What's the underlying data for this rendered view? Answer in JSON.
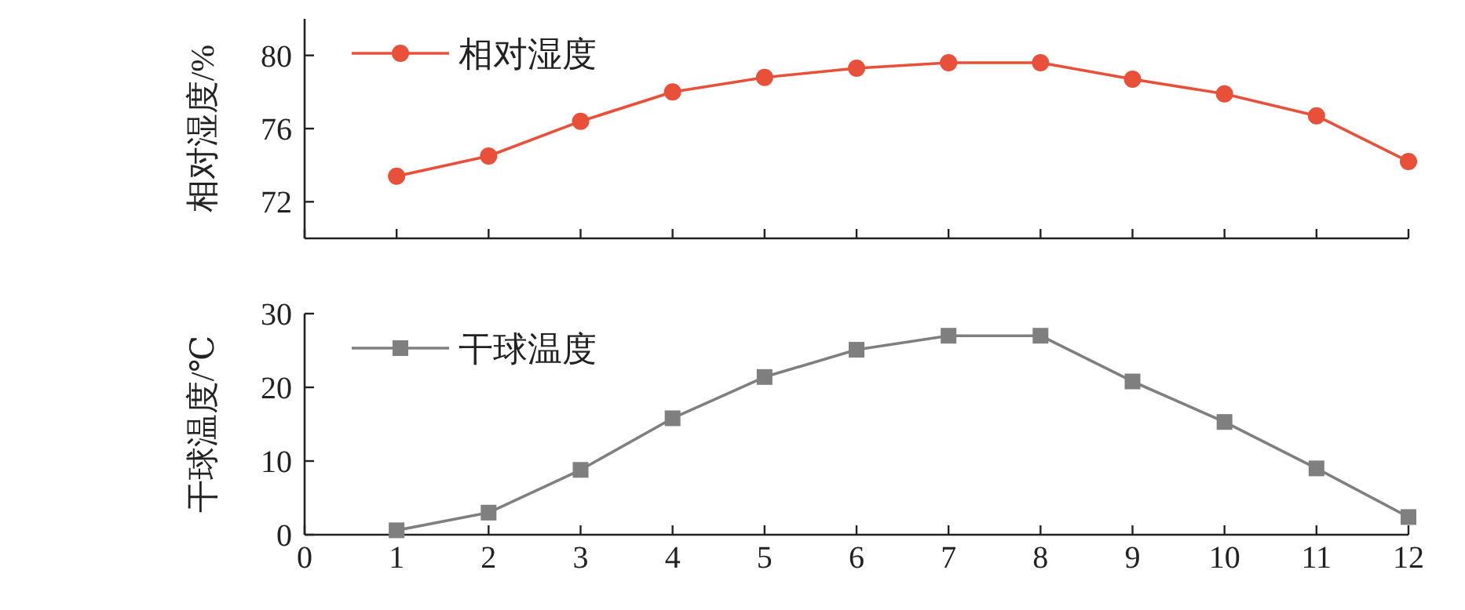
{
  "chart_data": [
    {
      "type": "line",
      "ylabel": "相对湿度/%",
      "x": [
        1,
        2,
        3,
        4,
        5,
        6,
        7,
        8,
        9,
        10,
        11,
        12
      ],
      "xlim": [
        0,
        12
      ],
      "xticks": [
        {
          "value": 0,
          "label": null
        },
        {
          "value": 1,
          "label": null
        },
        {
          "value": 2,
          "label": null
        },
        {
          "value": 3,
          "label": null
        },
        {
          "value": 4,
          "label": null
        },
        {
          "value": 5,
          "label": null
        },
        {
          "value": 6,
          "label": null
        },
        {
          "value": 7,
          "label": null
        },
        {
          "value": 8,
          "label": null
        },
        {
          "value": 9,
          "label": null
        },
        {
          "value": 10,
          "label": null
        },
        {
          "value": 11,
          "label": null
        },
        {
          "value": 12,
          "label": null
        }
      ],
      "ylim": [
        70,
        82
      ],
      "yticks": [
        72,
        76,
        80
      ],
      "tick_labels": "y",
      "marker": "circle",
      "legend": "top left",
      "grid": false,
      "series": [
        {
          "name": "相对湿度",
          "color": "#e8503a",
          "values": [
            73.4,
            74.5,
            76.4,
            78.0,
            78.8,
            79.3,
            79.6,
            79.6,
            78.7,
            77.9,
            76.7,
            74.2
          ]
        }
      ]
    },
    {
      "type": "line",
      "ylabel": "干球温度/℃",
      "x": [
        1,
        2,
        3,
        4,
        5,
        6,
        7,
        8,
        9,
        10,
        11,
        12
      ],
      "xlim": [
        0,
        12
      ],
      "xticks": [
        0,
        1,
        2,
        3,
        4,
        5,
        6,
        7,
        8,
        9,
        10,
        11,
        12
      ],
      "ylim": [
        0,
        30
      ],
      "yticks": [
        0,
        10,
        20,
        30
      ],
      "marker": "square",
      "legend": "top left",
      "grid": false,
      "series": [
        {
          "name": "干球温度",
          "color": "#7f7f7f",
          "values": [
            0.6,
            3.0,
            8.8,
            15.8,
            21.4,
            25.1,
            27.0,
            27.0,
            20.8,
            15.3,
            9.0,
            2.4
          ]
        }
      ]
    }
  ]
}
